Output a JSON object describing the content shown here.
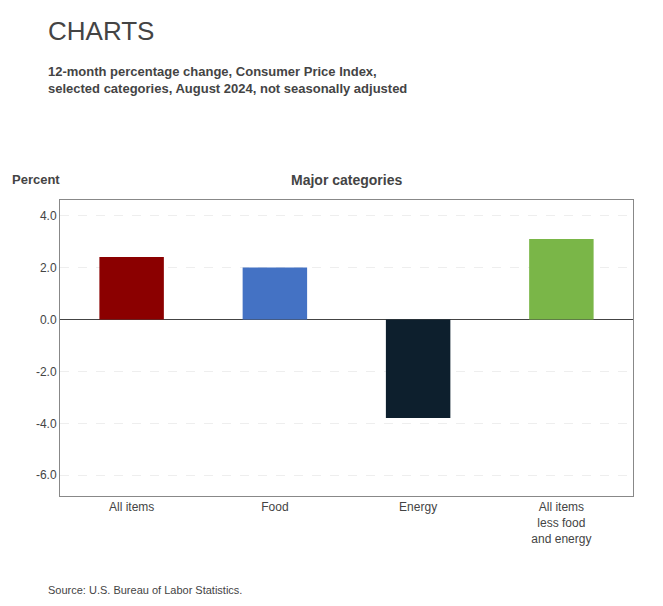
{
  "chart_data": {
    "type": "bar",
    "page_title": "CHARTS",
    "subtitle": "12-month percentage change, Consumer Price Index,\nselected categories, August 2024, not seasonally adjusted",
    "title": "Major categories",
    "ylabel": "Percent",
    "source": "Source: U.S. Bureau of Labor Statistics.",
    "categories": [
      "All items",
      "Food",
      "Energy",
      "All items\nless food\nand energy"
    ],
    "values": [
      2.4,
      2.0,
      -3.8,
      3.1
    ],
    "colors": [
      "#8B0000",
      "#4472C4",
      "#0D1F2D",
      "#7AB648"
    ],
    "ylim": [
      -6.8,
      4.6
    ],
    "yticks": [
      {
        "value": -6.0,
        "label": "-6.0"
      },
      {
        "value": -4.0,
        "label": "-4.0"
      },
      {
        "value": -2.0,
        "label": "-2.0"
      },
      {
        "value": 0.0,
        "label": "0.0"
      },
      {
        "value": 2.0,
        "label": "2.0"
      },
      {
        "value": 4.0,
        "label": "4.0"
      }
    ],
    "grid": true
  }
}
